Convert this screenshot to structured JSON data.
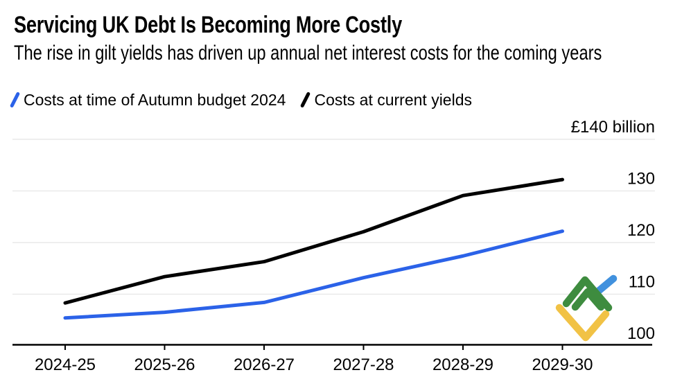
{
  "header": {
    "title": "Servicing UK Debt Is Becoming More Costly",
    "subtitle": "The rise in gilt yields has driven up annual net interest costs for the coming years"
  },
  "chart_data": {
    "type": "line",
    "title": "Servicing UK Debt Is Becoming More Costly",
    "subtitle": "The rise in gilt yields has driven up annual net interest costs for the coming years",
    "categories": [
      "2024-25",
      "2025-26",
      "2026-27",
      "2027-28",
      "2028-29",
      "2029-30"
    ],
    "series": [
      {
        "name": "Costs at time of Autumn budget 2024",
        "color": "#2B62E8",
        "values": [
          105.4,
          106.5,
          108.4,
          113.2,
          117.4,
          122.2
        ]
      },
      {
        "name": "Costs at current yields",
        "color": "#000000",
        "values": [
          108.3,
          113.4,
          116.3,
          122.1,
          129.1,
          132.2
        ]
      }
    ],
    "unit": "£ billion",
    "y_axis": {
      "min": 100,
      "max": 140,
      "ticks": [
        140,
        130,
        120,
        110,
        100
      ],
      "tick_labels": [
        "£140 billion",
        "130",
        "120",
        "110",
        "100"
      ],
      "side": "right"
    },
    "grid": "horizontal",
    "legend_position": "top-left"
  },
  "watermark": {
    "brand": "LiteFinance",
    "colors": {
      "green": "#3E8C3F",
      "yellow": "#F1C245",
      "blue": "#4191DE"
    }
  },
  "colors": {
    "text": "#000000",
    "grid": "#E9E9E9",
    "axis": "#000000",
    "background": "#FFFFFF"
  }
}
